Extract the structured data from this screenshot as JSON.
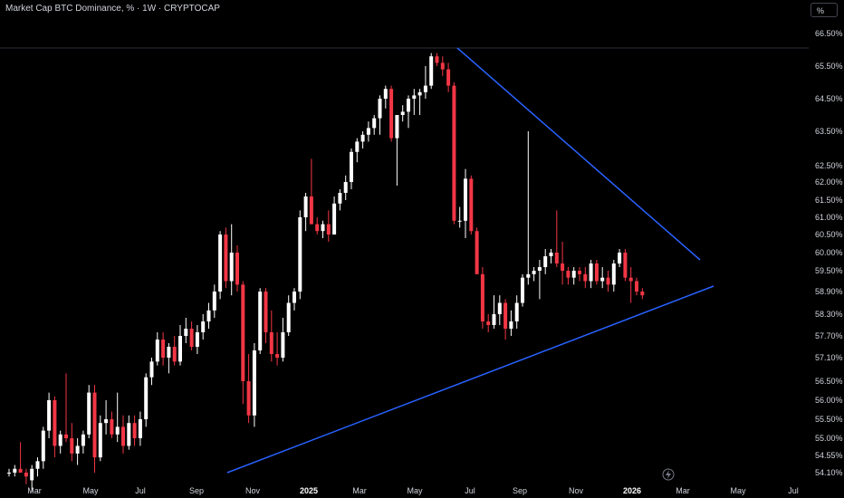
{
  "header": {
    "title": "Market Cap BTC Dominance, % · 1W · CRYPTOCAP",
    "unit_label": "%"
  },
  "colors": {
    "up": "#ffffff",
    "down": "#f23645",
    "trendline": "#2962ff",
    "background": "#000000",
    "text": "#d1d4dc"
  },
  "chart_data": {
    "type": "candlestick",
    "y_axis_labels": [
      "66.50%",
      "65.50%",
      "64.50%",
      "63.50%",
      "62.50%",
      "62.00%",
      "61.50%",
      "61.00%",
      "60.50%",
      "60.00%",
      "59.50%",
      "58.90%",
      "58.30%",
      "57.70%",
      "57.10%",
      "56.50%",
      "56.00%",
      "55.50%",
      "55.00%",
      "54.55%",
      "54.10%"
    ],
    "y_range": [
      54.0,
      66.7
    ],
    "x_axis_labels": [
      {
        "label": "Mar",
        "bold": false
      },
      {
        "label": "May",
        "bold": false
      },
      {
        "label": "Jul",
        "bold": false
      },
      {
        "label": "Sep",
        "bold": false
      },
      {
        "label": "Nov",
        "bold": false
      },
      {
        "label": "2025",
        "bold": true
      },
      {
        "label": "Mar",
        "bold": false
      },
      {
        "label": "May",
        "bold": false
      },
      {
        "label": "Jul",
        "bold": false
      },
      {
        "label": "Sep",
        "bold": false
      },
      {
        "label": "Nov",
        "bold": false
      },
      {
        "label": "2026",
        "bold": true
      },
      {
        "label": "Mar",
        "bold": false
      },
      {
        "label": "May",
        "bold": false
      },
      {
        "label": "Jul",
        "bold": false
      }
    ],
    "candles": [
      [
        54.1,
        54.2,
        54.0,
        54.1
      ],
      [
        54.1,
        54.3,
        54.0,
        54.2
      ],
      [
        54.2,
        54.9,
        54.1,
        54.1
      ],
      [
        54.1,
        54.2,
        53.8,
        54.0
      ],
      [
        53.9,
        54.3,
        53.6,
        54.2
      ],
      [
        54.2,
        54.5,
        54.0,
        54.4
      ],
      [
        54.4,
        55.3,
        54.2,
        55.2
      ],
      [
        55.2,
        56.2,
        55.0,
        56.0
      ],
      [
        56.0,
        56.1,
        54.5,
        54.8
      ],
      [
        54.8,
        55.2,
        54.6,
        55.1
      ],
      [
        55.1,
        56.7,
        54.9,
        55.0
      ],
      [
        55.0,
        55.4,
        54.4,
        54.6
      ],
      [
        54.6,
        55.0,
        54.3,
        54.8
      ],
      [
        54.8,
        55.2,
        54.6,
        55.1
      ],
      [
        55.1,
        56.4,
        55.0,
        56.2
      ],
      [
        56.2,
        56.4,
        54.1,
        54.5
      ],
      [
        54.5,
        55.6,
        54.4,
        55.4
      ],
      [
        55.4,
        56.0,
        55.1,
        55.5
      ],
      [
        55.5,
        55.7,
        55.0,
        55.1
      ],
      [
        55.1,
        56.2,
        54.9,
        55.3
      ],
      [
        55.3,
        55.6,
        54.6,
        54.8
      ],
      [
        54.8,
        55.6,
        54.7,
        55.4
      ],
      [
        55.4,
        55.6,
        54.8,
        55.0
      ],
      [
        55.0,
        55.7,
        54.8,
        55.5
      ],
      [
        55.5,
        56.7,
        55.3,
        56.6
      ],
      [
        56.6,
        57.1,
        56.4,
        57.0
      ],
      [
        57.0,
        57.8,
        56.9,
        57.6
      ],
      [
        57.6,
        57.8,
        56.9,
        57.1
      ],
      [
        57.1,
        57.5,
        56.7,
        57.4
      ],
      [
        57.4,
        57.7,
        56.9,
        57.0
      ],
      [
        57.0,
        58.0,
        56.9,
        57.7
      ],
      [
        57.7,
        58.2,
        57.5,
        57.9
      ],
      [
        57.9,
        58.1,
        57.3,
        57.4
      ],
      [
        57.4,
        58.0,
        57.2,
        57.8
      ],
      [
        57.8,
        58.3,
        57.6,
        58.1
      ],
      [
        58.1,
        58.6,
        57.9,
        58.4
      ],
      [
        58.4,
        59.1,
        58.2,
        58.9
      ],
      [
        58.9,
        60.6,
        58.7,
        60.5
      ],
      [
        60.5,
        60.7,
        59.0,
        59.2
      ],
      [
        59.2,
        60.8,
        58.8,
        60.0
      ],
      [
        60.0,
        60.2,
        58.9,
        59.1
      ],
      [
        59.1,
        59.2,
        55.9,
        56.5
      ],
      [
        56.5,
        57.2,
        55.4,
        55.6
      ],
      [
        55.6,
        57.5,
        55.3,
        57.3
      ],
      [
        57.3,
        59.0,
        57.2,
        58.9
      ],
      [
        58.9,
        59.0,
        57.5,
        57.8
      ],
      [
        57.8,
        58.4,
        57.0,
        57.2
      ],
      [
        57.2,
        57.8,
        56.9,
        57.1
      ],
      [
        57.1,
        58.2,
        57.0,
        57.8
      ],
      [
        57.8,
        58.8,
        57.7,
        58.6
      ],
      [
        58.6,
        59.0,
        58.4,
        58.9
      ],
      [
        58.9,
        61.2,
        58.7,
        61.0
      ],
      [
        61.0,
        61.7,
        60.6,
        61.6
      ],
      [
        61.6,
        62.7,
        60.8,
        60.8
      ],
      [
        60.8,
        61.0,
        60.5,
        60.6
      ],
      [
        60.6,
        60.9,
        60.4,
        60.8
      ],
      [
        60.8,
        61.2,
        60.3,
        60.5
      ],
      [
        60.5,
        61.6,
        60.5,
        61.4
      ],
      [
        61.4,
        61.8,
        61.2,
        61.7
      ],
      [
        61.7,
        62.2,
        61.5,
        62.0
      ],
      [
        62.0,
        63.0,
        61.8,
        62.9
      ],
      [
        62.9,
        63.3,
        62.6,
        63.2
      ],
      [
        63.2,
        63.5,
        63.0,
        63.4
      ],
      [
        63.4,
        63.8,
        63.2,
        63.6
      ],
      [
        63.6,
        64.0,
        63.4,
        63.9
      ],
      [
        63.9,
        64.6,
        63.4,
        64.5
      ],
      [
        64.5,
        64.9,
        64.2,
        64.8
      ],
      [
        64.8,
        64.9,
        63.2,
        63.3
      ],
      [
        63.3,
        64.0,
        61.9,
        64.0
      ],
      [
        64.0,
        64.3,
        63.8,
        64.1
      ],
      [
        64.1,
        64.6,
        63.6,
        64.5
      ],
      [
        64.5,
        64.8,
        64.0,
        64.6
      ],
      [
        64.6,
        64.8,
        64.0,
        64.7
      ],
      [
        64.7,
        65.5,
        64.5,
        64.9
      ],
      [
        64.9,
        65.9,
        64.8,
        65.8
      ],
      [
        65.8,
        65.9,
        65.5,
        65.6
      ],
      [
        65.6,
        65.8,
        65.2,
        65.4
      ],
      [
        65.4,
        65.6,
        64.7,
        64.9
      ],
      [
        64.9,
        65.0,
        60.8,
        60.9
      ],
      [
        60.9,
        61.3,
        60.7,
        60.9
      ],
      [
        60.9,
        62.4,
        60.4,
        62.1
      ],
      [
        62.1,
        62.2,
        60.5,
        60.6
      ],
      [
        60.6,
        60.7,
        59.4,
        59.4
      ],
      [
        59.4,
        59.6,
        57.9,
        58.1
      ],
      [
        58.1,
        58.3,
        57.8,
        58.0
      ],
      [
        58.0,
        58.8,
        57.9,
        58.3
      ],
      [
        58.3,
        58.8,
        58.0,
        58.6
      ],
      [
        58.6,
        58.7,
        57.6,
        57.9
      ],
      [
        57.9,
        58.4,
        57.7,
        58.1
      ],
      [
        58.1,
        58.8,
        57.9,
        58.6
      ],
      [
        58.6,
        59.4,
        58.5,
        59.3
      ],
      [
        59.3,
        63.5,
        59.1,
        59.4
      ],
      [
        59.4,
        59.6,
        59.2,
        59.5
      ],
      [
        59.5,
        59.8,
        58.7,
        59.6
      ],
      [
        59.6,
        60.1,
        59.4,
        59.9
      ],
      [
        59.9,
        60.1,
        59.7,
        60.0
      ],
      [
        60.0,
        61.2,
        59.6,
        59.7
      ],
      [
        59.7,
        60.3,
        59.1,
        59.5
      ],
      [
        59.5,
        59.6,
        59.1,
        59.3
      ],
      [
        59.3,
        59.6,
        59.1,
        59.5
      ],
      [
        59.5,
        59.6,
        59.2,
        59.4
      ],
      [
        59.4,
        59.6,
        59.0,
        59.2
      ],
      [
        59.2,
        59.8,
        59.0,
        59.7
      ],
      [
        59.7,
        59.8,
        59.1,
        59.2
      ],
      [
        59.2,
        59.6,
        59.0,
        59.3
      ],
      [
        59.3,
        59.5,
        58.9,
        59.1
      ],
      [
        59.1,
        59.8,
        58.9,
        59.7
      ],
      [
        59.7,
        60.1,
        59.6,
        60.0
      ],
      [
        60.0,
        60.1,
        59.2,
        59.3
      ],
      [
        59.3,
        59.6,
        58.6,
        59.2
      ],
      [
        59.2,
        59.3,
        58.8,
        58.9
      ],
      [
        58.9,
        59.0,
        58.7,
        58.8
      ]
    ],
    "trendlines": [
      {
        "name": "resistance",
        "points": [
          [
            65.9
          ],
          [
            59.8
          ]
        ]
      },
      {
        "name": "support",
        "points": [
          [
            54.1
          ],
          [
            59.0
          ]
        ]
      }
    ],
    "grid": false,
    "legend": "none"
  }
}
